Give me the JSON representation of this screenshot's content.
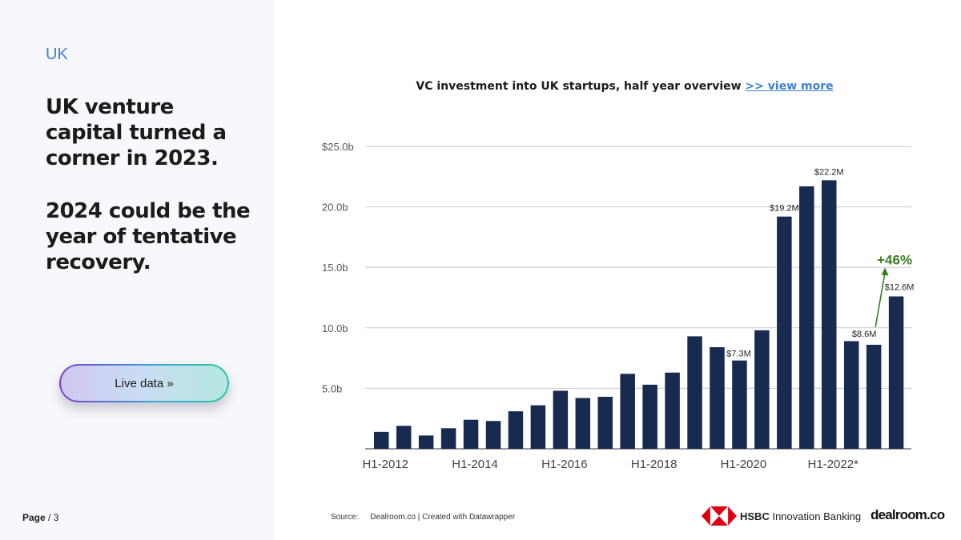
{
  "section_label": "UK",
  "headline": {
    "line1": "UK venture capital turned a corner in 2023.",
    "line2": "2024 could be the year of tentative recovery."
  },
  "cta_label": "Live data »",
  "page": {
    "label": "Page",
    "total": "/ 3"
  },
  "chart_title": {
    "text": "VC investment into UK startups, half year overview",
    "link": ">> view more"
  },
  "chart_data": {
    "type": "bar",
    "title": "VC investment into UK startups, half year overview",
    "categories": [
      "H1-2012",
      "H2-2012",
      "H1-2013",
      "H2-2013",
      "H1-2014",
      "H2-2014",
      "H1-2015",
      "H2-2015",
      "H1-2016",
      "H2-2016",
      "H1-2017",
      "H2-2017",
      "H1-2018",
      "H2-2018",
      "H1-2019",
      "H2-2019",
      "H1-2020",
      "H2-2020",
      "H1-2021",
      "H2-2021",
      "H1-2022",
      "H2-2022",
      "H1-2023",
      "H2-2023"
    ],
    "values": [
      1.4,
      1.9,
      1.1,
      1.7,
      2.4,
      2.3,
      3.1,
      3.6,
      4.8,
      4.2,
      4.3,
      6.2,
      5.3,
      6.3,
      9.3,
      8.4,
      7.3,
      9.8,
      19.2,
      21.7,
      22.2,
      8.9,
      8.6,
      12.6
    ],
    "xtick_labels": [
      "H1-2012",
      "H1-2014",
      "H1-2016",
      "H1-2018",
      "H1-2020",
      "H1-2022*"
    ],
    "yticks": [
      "$25.0b",
      "20.0b",
      "15.0b",
      "10.0b",
      "5.0b"
    ],
    "ytick_values": [
      25,
      20,
      15,
      10,
      5
    ],
    "ylim": [
      0,
      25
    ],
    "data_labels": [
      {
        "index": 16,
        "text": "$7.3M"
      },
      {
        "index": 18,
        "text": "$19.2M"
      },
      {
        "index": 20,
        "text": "$22.2M"
      },
      {
        "index": 22,
        "text": "$8.6M"
      },
      {
        "index": 23,
        "text": "$12.6M"
      }
    ],
    "annotation": {
      "text": "+46%",
      "from_index": 22,
      "to_index": 23,
      "color": "#3a7d22"
    },
    "bar_color": "#172a50",
    "grid": true
  },
  "source": {
    "label": "Source:",
    "text": "Dealroom.co | Created with Datawrapper"
  },
  "logos": {
    "hsbc_brand": "HSBC",
    "hsbc_rest": "Innovation Banking",
    "dealroom": "dealroom.co"
  }
}
